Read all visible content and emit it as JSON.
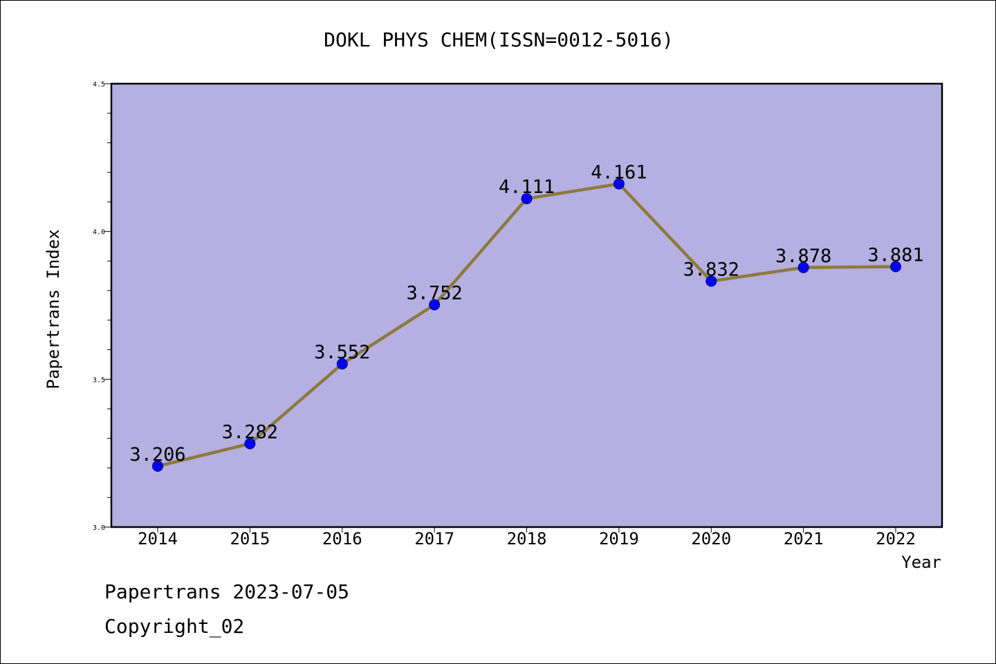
{
  "chart_data": {
    "type": "line",
    "title": "DOKL PHYS CHEM(ISSN=0012-5016)",
    "xlabel": "Year",
    "ylabel": "Papertrans Index",
    "categories": [
      "2014",
      "2015",
      "2016",
      "2017",
      "2018",
      "2019",
      "2020",
      "2021",
      "2022"
    ],
    "series": [
      {
        "values": [
          3.206,
          3.282,
          3.552,
          3.752,
          4.111,
          4.161,
          3.832,
          3.878,
          3.881
        ],
        "labels": [
          "3.206",
          "3.282",
          "3.552",
          "3.752",
          "4.111",
          "4.161",
          "3.832",
          "3.878",
          "3.881"
        ]
      }
    ],
    "ylim": [
      3.0,
      4.5
    ],
    "yticks": [
      "3.0",
      "3.5",
      "4.0",
      "4.5"
    ],
    "grid": false,
    "legend": "none"
  },
  "footer": {
    "line1": "Papertrans 2023-07-05",
    "line2": "Copyright_02"
  },
  "colors": {
    "plot_background": "#b5afe2",
    "line": "#8c7a3a",
    "marker": "#0000ff"
  }
}
